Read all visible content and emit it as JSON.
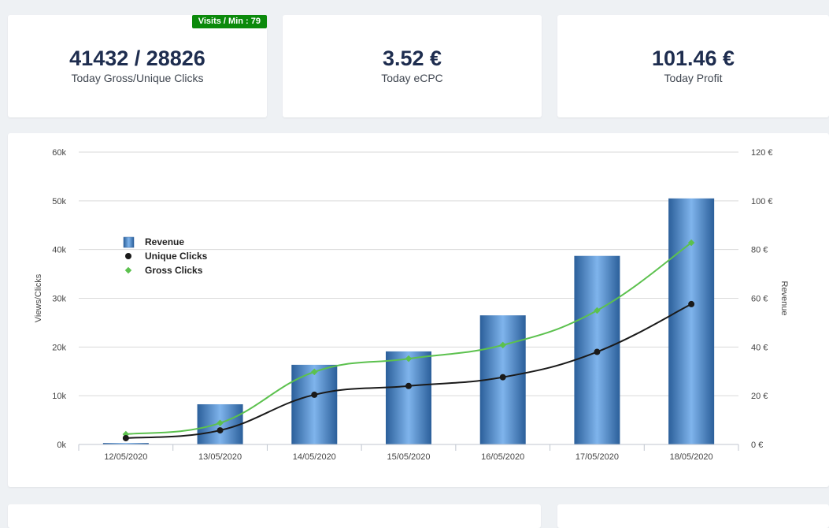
{
  "stats": [
    {
      "value": "41432 / 28826",
      "label": "Today Gross/Unique Clicks",
      "badge": "Visits / Min : 79"
    },
    {
      "value": "3.52 €",
      "label": "Today eCPC"
    },
    {
      "value": "101.46 €",
      "label": "Today Profit"
    }
  ],
  "colors": {
    "bar": "#3d7ec4",
    "unique": "#1a1a1a",
    "gross": "#5cc14e",
    "badge": "#0b8a0b"
  },
  "chart_data": {
    "type": "bar",
    "categories": [
      "12/05/2020",
      "13/05/2020",
      "14/05/2020",
      "15/05/2020",
      "16/05/2020",
      "17/05/2020",
      "18/05/2020"
    ],
    "series": [
      {
        "name": "Revenue",
        "type": "bar",
        "axis": "right",
        "values": [
          0.6,
          16.5,
          32.7,
          38.2,
          53,
          77.4,
          101
        ]
      },
      {
        "name": "Unique Clicks",
        "type": "line",
        "axis": "left",
        "values": [
          1300,
          2900,
          10200,
          12000,
          13800,
          19000,
          28800
        ]
      },
      {
        "name": "Gross Clicks",
        "type": "line",
        "axis": "left",
        "values": [
          2100,
          4400,
          14900,
          17600,
          20400,
          27500,
          41400
        ]
      }
    ],
    "ylabel": "Views/Clicks",
    "y2label": "Revenue",
    "ylim": [
      0,
      60000
    ],
    "y2lim": [
      0,
      120
    ],
    "yticks": [
      "0k",
      "10k",
      "20k",
      "30k",
      "40k",
      "50k",
      "60k"
    ],
    "y2ticks": [
      "0 €",
      "20 €",
      "40 €",
      "60 €",
      "80 €",
      "100 €",
      "120 €"
    ],
    "grid": true,
    "legend": "left"
  }
}
